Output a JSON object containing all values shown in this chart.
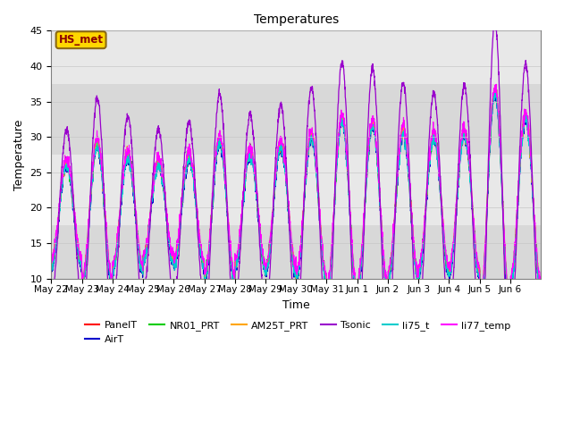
{
  "title": "Temperatures",
  "xlabel": "Time",
  "ylabel": "Temperature",
  "ylim": [
    10,
    45
  ],
  "series": [
    {
      "name": "PanelT",
      "color": "#FF0000"
    },
    {
      "name": "AirT",
      "color": "#0000CC"
    },
    {
      "name": "NR01_PRT",
      "color": "#00CC00"
    },
    {
      "name": "AM25T_PRT",
      "color": "#FFA500"
    },
    {
      "name": "Tsonic",
      "color": "#9900CC"
    },
    {
      "name": "li75_t",
      "color": "#00CCCC"
    },
    {
      "name": "li77_temp",
      "color": "#FF00FF"
    }
  ],
  "annotation_text": "HS_met",
  "annotation_color": "#8B0000",
  "annotation_bg": "#FFD700",
  "annotation_border": "#8B6914",
  "bg_bands": [
    {
      "ylo": 37.5,
      "yhi": 45,
      "color": "#E8E8E8"
    },
    {
      "ylo": 27.5,
      "yhi": 37.5,
      "color": "#D8D8D8"
    },
    {
      "ylo": 17.5,
      "yhi": 27.5,
      "color": "#E8E8E8"
    },
    {
      "ylo": 10,
      "yhi": 17.5,
      "color": "#D8D8D8"
    }
  ],
  "x_tick_labels": [
    "May 22",
    "May 23",
    "May 24",
    "May 25",
    "May 26",
    "May 27",
    "May 28",
    "May 29",
    "May 30",
    "May 31",
    "Jun 1",
    "Jun 2",
    "Jun 3",
    "Jun 4",
    "Jun 5",
    "Jun 6"
  ],
  "figsize": [
    6.4,
    4.8
  ],
  "dpi": 100
}
